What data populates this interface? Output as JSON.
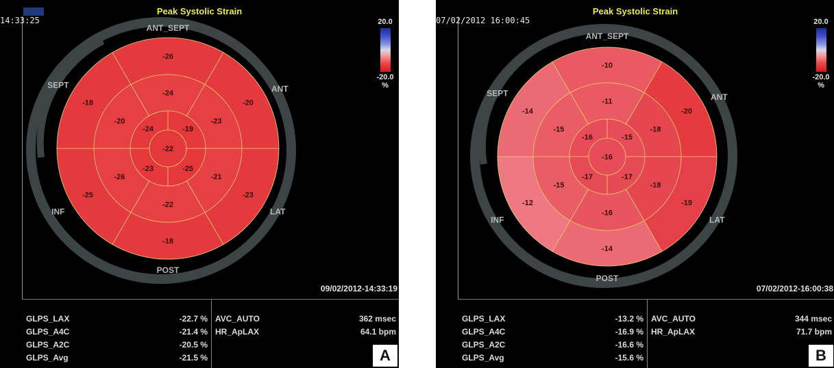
{
  "title": "Peak Systolic Strain",
  "panels": [
    {
      "id": "A",
      "timestamp_top": "14:33:25",
      "timestamp_bottom": "09/02/2012-14:33:19",
      "scale_max": "20.0",
      "scale_min": "-20.0",
      "scale_unit": "%",
      "wall_labels": {
        "ant_sept": "ANT_SEPT",
        "ant": "ANT",
        "lat": "LAT",
        "post": "POST",
        "inf": "INF",
        "sept": "SEPT"
      },
      "segments": {
        "basal": [
          "-26",
          "-20",
          "-23",
          "-18",
          "-25",
          "-18"
        ],
        "mid": [
          "-24",
          "-23",
          "-21",
          "-22",
          "-26",
          "-20"
        ],
        "apical": [
          "-19",
          "-25",
          "-23",
          "-24"
        ],
        "apex": "-22"
      },
      "colors": {
        "basal": [
          "#e43a3f",
          "#e43a3f",
          "#e43a3f",
          "#e43a3f",
          "#e43a3f",
          "#e43a3f"
        ],
        "mid": [
          "#e64045",
          "#e64045",
          "#e64045",
          "#e64045",
          "#e64045",
          "#e64045"
        ],
        "apical": [
          "#e5383d",
          "#e5383d",
          "#e5383d",
          "#e5383d"
        ],
        "apex": "#e5383d"
      },
      "stats_left": [
        {
          "label": "GLPS_LAX",
          "value": "-22.7 %"
        },
        {
          "label": "GLPS_A4C",
          "value": "-21.4 %"
        },
        {
          "label": "GLPS_A2C",
          "value": "-20.5 %"
        },
        {
          "label": "GLPS_Avg",
          "value": "-21.5 %"
        }
      ],
      "stats_right": [
        {
          "label": "AVC_AUTO",
          "value": "362 msec"
        },
        {
          "label": "HR_ApLAX",
          "value": "64.1 bpm"
        }
      ]
    },
    {
      "id": "B",
      "timestamp_top": "07/02/2012 16:00:45",
      "timestamp_bottom": "07/02/2012-16:00:38",
      "scale_max": "20.0",
      "scale_min": "-20.0",
      "scale_unit": "%",
      "wall_labels": {
        "ant_sept": "ANT_SEPT",
        "ant": "ANT",
        "lat": "LAT",
        "post": "POST",
        "inf": "INF",
        "sept": "SEPT"
      },
      "segments": {
        "basal": [
          "-10",
          "-20",
          "-19",
          "-14",
          "-12",
          "-14"
        ],
        "mid": [
          "-11",
          "-18",
          "-18",
          "-16",
          "-15",
          "-15"
        ],
        "apical": [
          "-15",
          "-17",
          "-17",
          "-16"
        ],
        "apex": "-16"
      },
      "colors": {
        "basal": [
          "#ea5a63",
          "#e43a40",
          "#e5404a",
          "#ec6a73",
          "#ee7883",
          "#ec6a73"
        ],
        "mid": [
          "#ea5a63",
          "#e64650",
          "#e64650",
          "#e85560",
          "#ea5c66",
          "#ea5c66"
        ],
        "apical": [
          "#e84c58",
          "#e64a55",
          "#e64a55",
          "#e84c58"
        ],
        "apex": "#e84c58"
      },
      "stats_left": [
        {
          "label": "GLPS_LAX",
          "value": "-13.2 %"
        },
        {
          "label": "GLPS_A4C",
          "value": "-16.9 %"
        },
        {
          "label": "GLPS_A2C",
          "value": "-16.6 %"
        },
        {
          "label": "GLPS_Avg",
          "value": "-15.6 %"
        }
      ],
      "stats_right": [
        {
          "label": "AVC_AUTO",
          "value": "344 msec"
        },
        {
          "label": "HR_ApLAX",
          "value": "71.7 bpm"
        }
      ]
    }
  ]
}
